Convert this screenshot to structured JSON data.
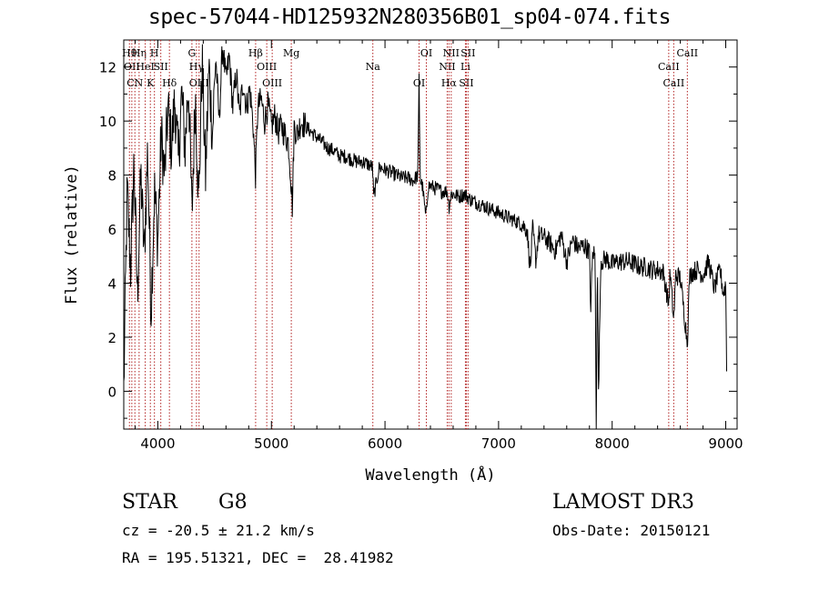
{
  "title": "spec-57044-HD125932N280356B01_sp04-074.fits",
  "chart_data": {
    "type": "line",
    "xlabel": "Wavelength (Å)",
    "ylabel": "Flux (relative)",
    "xlim": [
      3700,
      9100
    ],
    "ylim": [
      -1.4,
      13.0
    ],
    "xticks": [
      4000,
      5000,
      6000,
      7000,
      8000,
      9000
    ],
    "yticks": [
      0,
      2,
      4,
      6,
      8,
      10,
      12
    ],
    "series": [
      {
        "name": "spectrum",
        "x": [
          3700,
          3730,
          3760,
          3790,
          3820,
          3850,
          3880,
          3910,
          3940,
          3970,
          4000,
          4030,
          4060,
          4090,
          4120,
          4150,
          4180,
          4210,
          4240,
          4270,
          4300,
          4330,
          4360,
          4390,
          4420,
          4450,
          4480,
          4510,
          4540,
          4570,
          4600,
          4630,
          4660,
          4690,
          4720,
          4750,
          4780,
          4810,
          4840,
          4860,
          4880,
          4910,
          4940,
          4970,
          5000,
          5030,
          5060,
          5090,
          5120,
          5150,
          5170,
          5185,
          5200,
          5230,
          5260,
          5300,
          5350,
          5400,
          5450,
          5500,
          5550,
          5600,
          5650,
          5700,
          5750,
          5800,
          5850,
          5890,
          5900,
          5950,
          6000,
          6050,
          6100,
          6150,
          6200,
          6250,
          6290,
          6300,
          6310,
          6330,
          6360,
          6380,
          6400,
          6450,
          6500,
          6550,
          6563,
          6580,
          6600,
          6650,
          6700,
          6750,
          6800,
          6850,
          6900,
          6950,
          7000,
          7050,
          7100,
          7150,
          7200,
          7250,
          7280,
          7300,
          7330,
          7350,
          7400,
          7450,
          7500,
          7550,
          7600,
          7650,
          7700,
          7750,
          7800,
          7810,
          7830,
          7850,
          7860,
          7870,
          7880,
          7900,
          7950,
          8000,
          8050,
          8100,
          8150,
          8200,
          8250,
          8300,
          8350,
          8400,
          8450,
          8498,
          8510,
          8542,
          8560,
          8600,
          8662,
          8680,
          8700,
          8750,
          8800,
          8850,
          8900,
          8950,
          8980,
          9000,
          9010
        ],
        "values": [
          0.0,
          7.5,
          4.5,
          8.5,
          3.5,
          8.0,
          5.0,
          9.0,
          3.0,
          7.5,
          5.5,
          9.5,
          8.0,
          10.5,
          9.0,
          10.8,
          8.5,
          11.0,
          9.0,
          11.5,
          6.5,
          11.0,
          7.0,
          12.2,
          8.0,
          12.0,
          9.5,
          12.4,
          10.0,
          12.8,
          11.5,
          12.4,
          10.5,
          11.8,
          10.2,
          11.5,
          10.5,
          11.2,
          9.8,
          8.0,
          10.5,
          10.8,
          10.0,
          10.6,
          9.8,
          10.2,
          9.6,
          9.8,
          9.5,
          9.2,
          8.0,
          6.8,
          9.8,
          9.5,
          10.0,
          9.8,
          9.6,
          9.4,
          9.2,
          9.0,
          8.9,
          8.7,
          8.7,
          8.6,
          8.5,
          8.5,
          8.4,
          8.3,
          7.2,
          8.3,
          8.2,
          8.1,
          8.0,
          7.9,
          7.9,
          7.8,
          8.0,
          11.6,
          7.8,
          7.6,
          6.4,
          7.6,
          7.6,
          7.5,
          7.4,
          7.4,
          6.8,
          7.3,
          7.3,
          7.2,
          7.3,
          7.1,
          7.0,
          6.9,
          6.8,
          6.7,
          6.6,
          6.5,
          6.4,
          6.3,
          6.2,
          6.0,
          4.5,
          6.0,
          4.8,
          5.8,
          5.7,
          5.5,
          5.2,
          5.8,
          4.8,
          5.6,
          5.3,
          5.4,
          5.2,
          3.0,
          5.2,
          5.0,
          -1.4,
          5.0,
          -0.2,
          4.8,
          4.9,
          4.7,
          4.8,
          4.8,
          4.8,
          4.7,
          4.6,
          4.6,
          4.5,
          4.5,
          4.4,
          3.2,
          4.4,
          2.6,
          4.3,
          4.2,
          1.8,
          4.2,
          4.4,
          4.5,
          4.3,
          4.8,
          3.8,
          4.5,
          3.6,
          4.0,
          0.0
        ]
      }
    ],
    "lines": [
      {
        "wl": 3750,
        "label": "Hθ"
      },
      {
        "wl": 3771,
        "label": "OII"
      },
      {
        "wl": 3798,
        "label": "CN"
      },
      {
        "wl": 3835,
        "label": "Hη"
      },
      {
        "wl": 3889,
        "label": "HeI"
      },
      {
        "wl": 3934,
        "label": "K"
      },
      {
        "wl": 3970,
        "label": "H"
      },
      {
        "wl": 4026,
        "label": "SII"
      },
      {
        "wl": 4102,
        "label": "Hδ"
      },
      {
        "wl": 4300,
        "label": "G"
      },
      {
        "wl": 4340,
        "label": "Hγ"
      },
      {
        "wl": 4363,
        "label": "OIII"
      },
      {
        "wl": 4861,
        "label": "Hβ"
      },
      {
        "wl": 4959,
        "label": "OIII"
      },
      {
        "wl": 5007,
        "label": "OIII"
      },
      {
        "wl": 5175,
        "label": "Mg"
      },
      {
        "wl": 5893,
        "label": "Na"
      },
      {
        "wl": 6300,
        "label": "OI"
      },
      {
        "wl": 6364,
        "label": "OI"
      },
      {
        "wl": 6548,
        "label": "NII"
      },
      {
        "wl": 6563,
        "label": "Hα"
      },
      {
        "wl": 6583,
        "label": "NII"
      },
      {
        "wl": 6708,
        "label": "Li"
      },
      {
        "wl": 6716,
        "label": "SII"
      },
      {
        "wl": 6731,
        "label": "SII"
      },
      {
        "wl": 8498,
        "label": "CaII"
      },
      {
        "wl": 8542,
        "label": "CaII"
      },
      {
        "wl": 8662,
        "label": "CaII"
      }
    ]
  },
  "info": {
    "class": "STAR",
    "subclass": "G8",
    "survey": "LAMOST DR3",
    "cz": "cz = -20.5 ± 21.2 km/s",
    "obs_date": "Obs-Date: 20150121",
    "coords": "RA = 195.51321, DEC =  28.41982"
  }
}
